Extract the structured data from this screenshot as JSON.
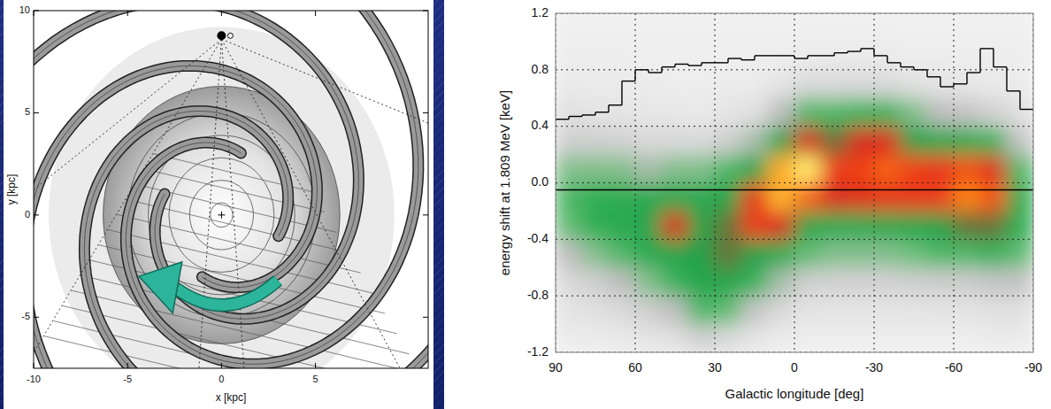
{
  "chart_data": [
    {
      "type": "diagram",
      "xlim": [
        -10,
        11
      ],
      "ylim": [
        -7.5,
        10
      ],
      "xticks": [
        -10,
        -5,
        0,
        5
      ],
      "yticks": [
        -5,
        0,
        5,
        10
      ],
      "x_label": "x [kpc]",
      "y_label": "y [kpc]"
    },
    {
      "type": "heatmap",
      "xlim": [
        90,
        -90
      ],
      "ylim": [
        -1.2,
        1.2
      ],
      "xticks": [
        90,
        60,
        30,
        0,
        -30,
        -60,
        -90
      ],
      "yticks": [
        -1.2,
        -0.8,
        -0.4,
        {
          "value": 0,
          "label": "0.0"
        },
        0.4,
        0.8,
        1.2
      ],
      "x_label": "Galactic longitude [deg]",
      "y_label": "energy shift at 1.809 MeV [keV]",
      "grid": true,
      "x_bins": [
        90,
        80,
        70,
        60,
        50,
        40,
        30,
        20,
        10,
        0,
        -10,
        -20,
        -30,
        -40,
        -50,
        -60,
        -70,
        -80,
        -90
      ],
      "y_bins": [
        -1.2,
        -1,
        -0.8,
        -0.6,
        -0.4,
        -0.2,
        0,
        0.2,
        0.4,
        0.6,
        0.8,
        1,
        1.2
      ],
      "zlim": [
        0,
        1
      ],
      "cells": [
        [
          0.05,
          0.08,
          0.12,
          0.2,
          0.28,
          0.3,
          0.25,
          0.15,
          0.1,
          0.06,
          0.04,
          0.03
        ],
        [
          0.05,
          0.1,
          0.15,
          0.25,
          0.33,
          0.33,
          0.25,
          0.15,
          0.08,
          0.05,
          0.04,
          0.03
        ],
        [
          0.06,
          0.12,
          0.2,
          0.3,
          0.4,
          0.36,
          0.25,
          0.14,
          0.08,
          0.05,
          0.04,
          0.03
        ],
        [
          0.08,
          0.15,
          0.25,
          0.38,
          0.45,
          0.38,
          0.22,
          0.12,
          0.07,
          0.05,
          0.03,
          0.03
        ],
        [
          0.1,
          0.2,
          0.32,
          0.45,
          0.62,
          0.42,
          0.25,
          0.12,
          0.07,
          0.04,
          0.03,
          0.03
        ],
        [
          0.15,
          0.3,
          0.45,
          0.5,
          0.48,
          0.38,
          0.25,
          0.12,
          0.06,
          0.04,
          0.03,
          0.03
        ],
        [
          0.12,
          0.28,
          0.45,
          0.55,
          0.55,
          0.45,
          0.3,
          0.15,
          0.08,
          0.05,
          0.03,
          0.03
        ],
        [
          0.08,
          0.18,
          0.32,
          0.5,
          0.72,
          0.7,
          0.45,
          0.22,
          0.1,
          0.05,
          0.03,
          0.03
        ],
        [
          0.05,
          0.12,
          0.22,
          0.38,
          0.6,
          0.92,
          0.9,
          0.45,
          0.2,
          0.08,
          0.04,
          0.03
        ],
        [
          0.04,
          0.08,
          0.15,
          0.28,
          0.45,
          0.8,
          1.0,
          0.6,
          0.3,
          0.12,
          0.05,
          0.03
        ],
        [
          0.04,
          0.08,
          0.14,
          0.25,
          0.4,
          0.62,
          0.72,
          0.55,
          0.3,
          0.12,
          0.05,
          0.03
        ],
        [
          0.04,
          0.08,
          0.14,
          0.25,
          0.4,
          0.65,
          0.75,
          0.6,
          0.32,
          0.12,
          0.05,
          0.03
        ],
        [
          0.04,
          0.08,
          0.14,
          0.25,
          0.42,
          0.7,
          0.8,
          0.62,
          0.32,
          0.12,
          0.05,
          0.03
        ],
        [
          0.04,
          0.08,
          0.15,
          0.27,
          0.45,
          0.7,
          0.75,
          0.5,
          0.25,
          0.1,
          0.04,
          0.03
        ],
        [
          0.04,
          0.08,
          0.16,
          0.3,
          0.5,
          0.72,
          0.7,
          0.42,
          0.2,
          0.08,
          0.04,
          0.03
        ],
        [
          0.04,
          0.08,
          0.16,
          0.3,
          0.55,
          0.85,
          0.78,
          0.4,
          0.18,
          0.07,
          0.04,
          0.03
        ],
        [
          0.05,
          0.1,
          0.18,
          0.32,
          0.55,
          0.78,
          0.65,
          0.32,
          0.14,
          0.06,
          0.04,
          0.03
        ],
        [
          0.05,
          0.1,
          0.18,
          0.28,
          0.35,
          0.36,
          0.3,
          0.18,
          0.1,
          0.05,
          0.04,
          0.03
        ]
      ],
      "hline": -0.05,
      "series": [
        {
          "type": "step",
          "color": "#000000",
          "bins": [
            90,
            85,
            80,
            75,
            70,
            65,
            60,
            55,
            50,
            45,
            40,
            35,
            30,
            25,
            20,
            15,
            10,
            5,
            0,
            -5,
            -10,
            -15,
            -20,
            -25,
            -30,
            -35,
            -40,
            -45,
            -50,
            -55,
            -60,
            -65,
            -70,
            -75,
            -80,
            -85,
            -90
          ],
          "values": [
            0.45,
            0.47,
            0.48,
            0.5,
            0.55,
            0.72,
            0.8,
            0.78,
            0.82,
            0.84,
            0.83,
            0.85,
            0.85,
            0.88,
            0.87,
            0.9,
            0.9,
            0.9,
            0.88,
            0.9,
            0.9,
            0.92,
            0.93,
            0.95,
            0.9,
            0.85,
            0.82,
            0.8,
            0.75,
            0.68,
            0.7,
            0.78,
            0.95,
            0.82,
            0.65,
            0.52
          ]
        }
      ]
    }
  ]
}
